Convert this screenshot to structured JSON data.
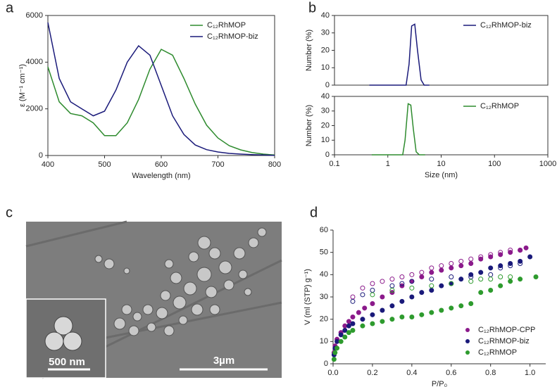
{
  "chart_data": [
    {
      "type": "line",
      "label": "a",
      "xlabel": "Wavelength (nm)",
      "ylabel": "ε (M⁻¹ cm⁻¹)",
      "frame": true,
      "legend": "upper right",
      "xlim": [
        400,
        800
      ],
      "xticks": [
        400,
        500,
        600,
        700,
        800
      ],
      "ylim": [
        0,
        6000
      ],
      "yticks": [
        0,
        2000,
        4000,
        6000
      ],
      "x": [
        400,
        420,
        440,
        460,
        480,
        500,
        520,
        540,
        560,
        580,
        600,
        620,
        640,
        660,
        680,
        700,
        720,
        740,
        760,
        780,
        800
      ],
      "series": [
        {
          "name": "C₁₂RhMOP",
          "color": "#2e8b2e",
          "values": [
            3800,
            2300,
            1800,
            1700,
            1400,
            850,
            850,
            1400,
            2400,
            3700,
            4550,
            4300,
            3300,
            2200,
            1300,
            750,
            420,
            240,
            130,
            60,
            20
          ]
        },
        {
          "name": "C₁₂RhMOP-biz",
          "color": "#1a1a7a",
          "values": [
            5700,
            3300,
            2300,
            2000,
            1700,
            1900,
            2800,
            4000,
            4700,
            4300,
            3000,
            1700,
            900,
            450,
            250,
            150,
            90,
            60,
            40,
            20,
            10
          ]
        }
      ]
    },
    {
      "type": "line",
      "label": "b",
      "ylabel": "Number (%)",
      "frame": true,
      "log_x": true,
      "legend": "upper right",
      "xlim": [
        0.1,
        1000
      ],
      "ylim": [
        0,
        40
      ],
      "yticks": [
        0,
        10,
        20,
        30,
        40
      ],
      "series": [
        {
          "name": "C₁₂RhMOP-biz",
          "color": "#1a1a7a",
          "x": [
            0.45,
            2.2,
            2.5,
            2.8,
            3.2,
            3.6,
            4.2,
            4.8,
            6
          ],
          "values": [
            0,
            0,
            12,
            34,
            35,
            20,
            3,
            0,
            0
          ]
        }
      ]
    },
    {
      "type": "line",
      "xlabel": "Size (nm)",
      "ylabel": "Number (%)",
      "frame": true,
      "log_x": true,
      "legend": "upper right",
      "xlim": [
        0.1,
        1000
      ],
      "xticks": [
        0.1,
        1,
        10,
        100,
        1000
      ],
      "ylim": [
        0,
        40
      ],
      "yticks": [
        0,
        10,
        20,
        30,
        40
      ],
      "series": [
        {
          "name": "C₁₂RhMOP",
          "color": "#2e8b2e",
          "x": [
            0.5,
            1.9,
            2.1,
            2.4,
            2.7,
            3.0,
            3.4,
            3.9,
            5
          ],
          "values": [
            0,
            0,
            10,
            35,
            34,
            18,
            2,
            0,
            0
          ]
        }
      ]
    },
    {
      "type": "image",
      "label": "c",
      "annotations": [
        "500 nm",
        "3µm"
      ]
    },
    {
      "type": "scatter",
      "label": "d",
      "xlabel": "P/P₀",
      "ylabel": "V (ml (STP) g⁻¹)",
      "frame": false,
      "legend": "lower right",
      "xlim": [
        0,
        1.08
      ],
      "xticks": [
        {
          "value": 0,
          "label": "0.0"
        },
        0.2,
        0.4,
        0.6,
        0.8,
        {
          "value": 1,
          "label": "1.0"
        }
      ],
      "ylim": [
        0,
        60
      ],
      "yticks": [
        0,
        10,
        20,
        30,
        40,
        50,
        60
      ],
      "series": [
        {
          "name": "C₁₂RhMOP-CPP",
          "color": "#8b1a8b",
          "x": [
            0.005,
            0.01,
            0.02,
            0.04,
            0.06,
            0.08,
            0.1,
            0.13,
            0.16,
            0.2,
            0.25,
            0.3,
            0.35,
            0.4,
            0.45,
            0.5,
            0.55,
            0.6,
            0.65,
            0.7,
            0.75,
            0.8,
            0.85,
            0.9,
            0.95,
            0.98
          ],
          "values": [
            5,
            8,
            11,
            14,
            17,
            19,
            21,
            23,
            25,
            27,
            30,
            32,
            35,
            37,
            39,
            41,
            42,
            43,
            44,
            45,
            47,
            48,
            49,
            50,
            51,
            52
          ]
        },
        {
          "name": "C₁₂RhMOP-biz",
          "color": "#1a1a7a",
          "x": [
            0.005,
            0.01,
            0.02,
            0.04,
            0.06,
            0.08,
            0.1,
            0.15,
            0.2,
            0.25,
            0.3,
            0.35,
            0.4,
            0.45,
            0.5,
            0.55,
            0.6,
            0.65,
            0.7,
            0.75,
            0.8,
            0.85,
            0.9,
            0.95,
            1.0
          ],
          "values": [
            4,
            7,
            10,
            13,
            15,
            17,
            18,
            20,
            22,
            24,
            26,
            28,
            30,
            32,
            33,
            35,
            36,
            38,
            40,
            41,
            43,
            44,
            45,
            46,
            48
          ]
        },
        {
          "name": "C₁₂RhMOP",
          "color": "#2e9b2e",
          "x": [
            0.005,
            0.01,
            0.02,
            0.04,
            0.06,
            0.08,
            0.1,
            0.15,
            0.2,
            0.25,
            0.3,
            0.35,
            0.4,
            0.45,
            0.5,
            0.55,
            0.6,
            0.65,
            0.7,
            0.75,
            0.8,
            0.85,
            0.9,
            0.95,
            1.03
          ],
          "values": [
            2,
            5,
            7,
            10,
            12,
            14,
            15,
            17,
            18,
            19,
            20,
            21,
            21,
            22,
            23,
            24,
            25,
            26,
            27,
            32,
            33,
            35,
            37,
            38,
            39
          ]
        },
        {
          "color": "#8b1a8b",
          "marker": "open",
          "x": [
            0.1,
            0.15,
            0.2,
            0.25,
            0.3,
            0.35,
            0.4,
            0.45,
            0.5,
            0.55,
            0.6,
            0.65,
            0.7,
            0.75,
            0.8,
            0.85,
            0.9,
            0.95
          ],
          "values": [
            30,
            34,
            36,
            37,
            38,
            39,
            40,
            41,
            43,
            44,
            45,
            46,
            47,
            48,
            49,
            50,
            51,
            51
          ]
        },
        {
          "color": "#1a1a7a",
          "marker": "open",
          "x": [
            0.1,
            0.15,
            0.2,
            0.3,
            0.35,
            0.4,
            0.5,
            0.6,
            0.7,
            0.8,
            0.85,
            0.9,
            0.95
          ],
          "values": [
            28,
            31,
            33,
            35,
            36,
            37,
            38,
            39,
            39,
            40,
            43,
            44,
            45
          ]
        },
        {
          "color": "#2e9b2e",
          "marker": "open",
          "x": [
            0.2,
            0.3,
            0.4,
            0.5,
            0.6,
            0.7,
            0.75,
            0.8,
            0.85,
            0.9
          ],
          "values": [
            31,
            33,
            34,
            35,
            36,
            37,
            38,
            38,
            39,
            39
          ]
        }
      ]
    }
  ]
}
